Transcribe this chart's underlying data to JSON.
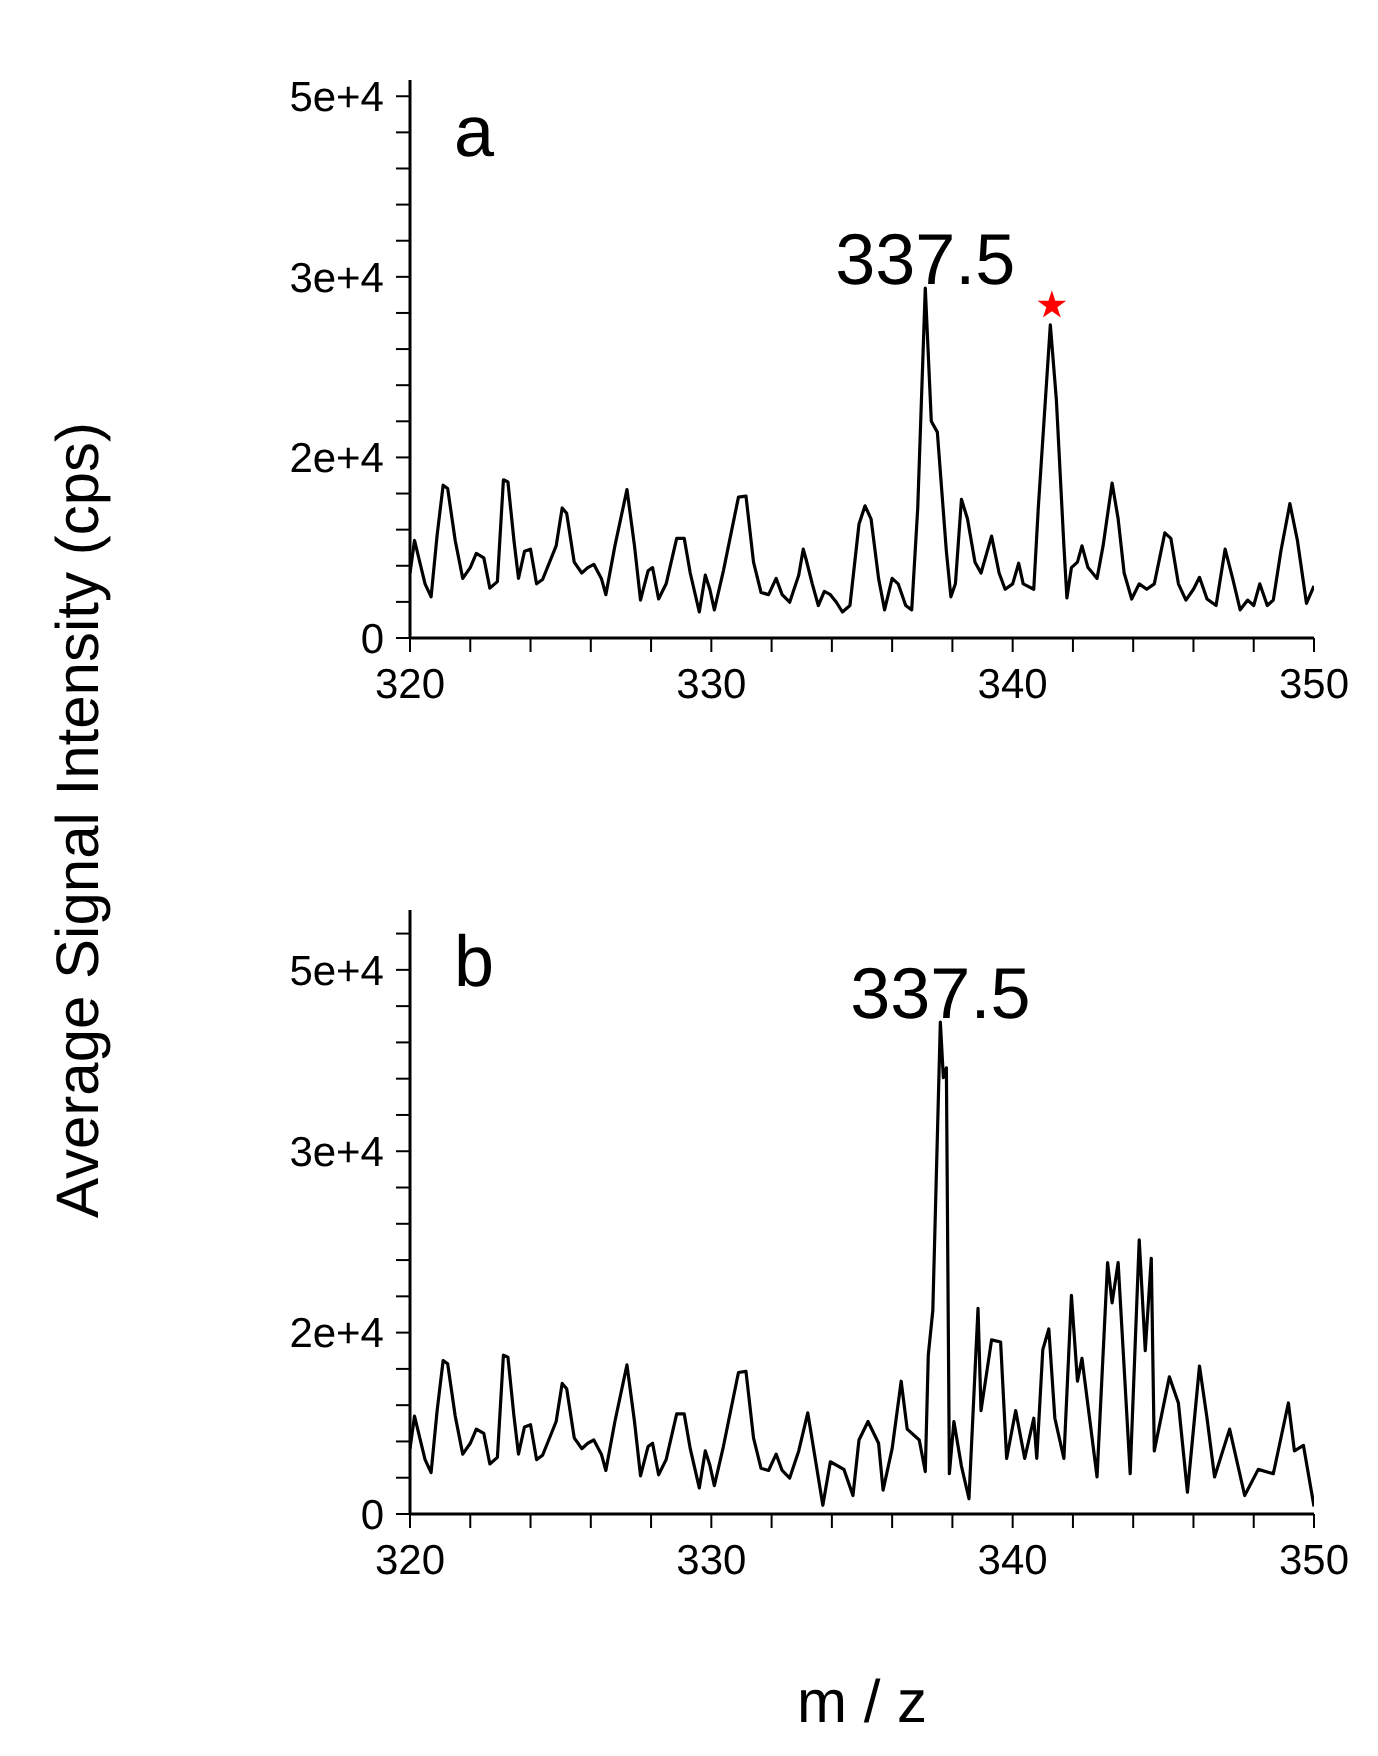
{
  "chart_data": [
    {
      "type": "line",
      "ylabel": "Average Signal Intensity (cps)",
      "annotations": [
        "a",
        {
          "text": "337.5",
          "x": 337.1,
          "y": 32300
        }
      ],
      "xlim": [
        320,
        350
      ],
      "ylim": [
        0,
        51500
      ],
      "xticks": [
        320,
        {
          "value": 322,
          "label": null
        },
        {
          "value": 324,
          "label": null
        },
        {
          "value": 326,
          "label": null
        },
        {
          "value": 328,
          "label": null
        },
        330,
        {
          "value": 332,
          "label": null
        },
        {
          "value": 334,
          "label": null
        },
        {
          "value": 336,
          "label": null
        },
        {
          "value": 338,
          "label": null
        },
        340,
        {
          "value": 342,
          "label": null
        },
        {
          "value": 344,
          "label": null
        },
        {
          "value": 346,
          "label": null
        },
        {
          "value": 348,
          "label": null
        },
        350
      ],
      "yticks": [
        0,
        {
          "value": 3333.3,
          "label": null
        },
        {
          "value": 6666.7,
          "label": null
        },
        {
          "value": 10000,
          "label": null
        },
        {
          "value": 13333.3,
          "label": null
        },
        {
          "value": 16666.7,
          "label": "2e+4"
        },
        {
          "value": 20000,
          "label": null
        },
        {
          "value": 23333.3,
          "label": null
        },
        {
          "value": 26666.7,
          "label": null
        },
        {
          "value": 30000,
          "label": null
        },
        {
          "value": 33333.3,
          "label": "3e+4"
        },
        {
          "value": 36666.7,
          "label": null
        },
        {
          "value": 40000,
          "label": null
        },
        {
          "value": 43333.3,
          "label": null
        },
        {
          "value": 46666.7,
          "label": null
        },
        {
          "value": 50000,
          "label": "5e+4"
        }
      ],
      "series": [
        {
          "color": "#000000",
          "x": [
            320.0,
            320.15,
            320.5,
            320.7,
            320.9,
            321.1,
            321.25,
            321.5,
            321.75,
            322.0,
            322.2,
            322.45,
            322.65,
            322.9,
            323.1,
            323.25,
            323.45,
            323.6,
            323.8,
            324.0,
            324.2,
            324.4,
            324.85,
            325.05,
            325.2,
            325.45,
            325.7,
            325.9,
            326.1,
            326.35,
            326.5,
            326.8,
            327.2,
            327.45,
            327.65,
            327.9,
            328.05,
            328.25,
            328.5,
            328.85,
            329.1,
            329.3,
            329.6,
            329.8,
            329.95,
            330.1,
            330.4,
            330.9,
            331.15,
            331.4,
            331.65,
            331.9,
            332.15,
            332.35,
            332.6,
            332.9,
            333.05,
            333.15,
            333.35,
            333.55,
            333.75,
            333.95,
            334.15,
            334.35,
            334.6,
            334.9,
            335.1,
            335.3,
            335.55,
            335.75,
            336.0,
            336.2,
            336.45,
            336.65,
            336.85,
            337.1,
            337.3,
            337.5,
            337.8,
            337.95,
            338.1,
            338.3,
            338.5,
            338.75,
            338.95,
            339.3,
            339.55,
            339.75,
            340.0,
            340.2,
            340.35,
            340.7,
            340.85,
            341.25,
            341.45,
            341.7,
            341.8,
            341.95,
            342.15,
            342.3,
            342.5,
            342.8,
            343.0,
            343.3,
            343.5,
            343.7,
            343.95,
            344.2,
            344.45,
            344.7,
            345.05,
            345.25,
            345.5,
            345.75,
            346.0,
            346.2,
            346.45,
            346.75,
            347.05,
            347.3,
            347.55,
            347.8,
            348.0,
            348.2,
            348.45,
            348.65,
            348.9,
            349.2,
            349.45,
            349.75,
            350.0
          ],
          "values": [
            6000,
            9000,
            5000,
            3800,
            9500,
            14100,
            13800,
            9000,
            5500,
            6500,
            7800,
            7400,
            4600,
            5200,
            14600,
            14400,
            9000,
            5500,
            8000,
            8200,
            5000,
            5400,
            8500,
            12000,
            11500,
            7000,
            6000,
            6500,
            6800,
            5500,
            4000,
            8500,
            13700,
            8500,
            3500,
            6200,
            6500,
            3600,
            5000,
            9200,
            9200,
            6000,
            2400,
            5800,
            4500,
            2600,
            6200,
            13000,
            13100,
            7000,
            4200,
            4000,
            5500,
            4000,
            3300,
            5800,
            8200,
            7200,
            5000,
            3000,
            4300,
            4000,
            3300,
            2400,
            3000,
            10500,
            12200,
            11000,
            5500,
            2600,
            5500,
            5000,
            3000,
            2600,
            12000,
            32300,
            20000,
            19000,
            8000,
            3800,
            5000,
            12800,
            11000,
            7000,
            6000,
            9400,
            6000,
            4500,
            5000,
            6900,
            5000,
            4500,
            12000,
            28900,
            22000,
            8500,
            3700,
            6500,
            7000,
            8500,
            6500,
            5500,
            8500,
            14300,
            11000,
            6000,
            3600,
            5000,
            4500,
            5000,
            9700,
            9200,
            5000,
            3500,
            4500,
            5600,
            3600,
            3000,
            8200,
            5500,
            2600,
            3500,
            3000,
            5000,
            3000,
            3500,
            8000,
            12400,
            9000,
            3200,
            4800
          ]
        },
        {
          "type": "scatter",
          "color": "#ff0000",
          "marker": "star",
          "x": [
            341.3
          ],
          "values": [
            30700
          ]
        }
      ]
    },
    {
      "type": "line",
      "xlabel": "m / z",
      "annotations": [
        "b",
        {
          "text": "337.5",
          "x": 337.6,
          "y": 45200
        }
      ],
      "xlim": [
        320,
        350
      ],
      "ylim": [
        0,
        55500
      ],
      "xticks": [
        320,
        {
          "value": 322,
          "label": null
        },
        {
          "value": 324,
          "label": null
        },
        {
          "value": 326,
          "label": null
        },
        {
          "value": 328,
          "label": null
        },
        330,
        {
          "value": 332,
          "label": null
        },
        {
          "value": 334,
          "label": null
        },
        {
          "value": 336,
          "label": null
        },
        {
          "value": 338,
          "label": null
        },
        340,
        {
          "value": 342,
          "label": null
        },
        {
          "value": 344,
          "label": null
        },
        {
          "value": 346,
          "label": null
        },
        {
          "value": 348,
          "label": null
        },
        350
      ],
      "yticks": [
        0,
        {
          "value": 3333.3,
          "label": null
        },
        {
          "value": 6666.7,
          "label": null
        },
        {
          "value": 10000,
          "label": null
        },
        {
          "value": 13333.3,
          "label": null
        },
        {
          "value": 16666.7,
          "label": "2e+4"
        },
        {
          "value": 20000,
          "label": null
        },
        {
          "value": 23333.3,
          "label": null
        },
        {
          "value": 26666.7,
          "label": null
        },
        {
          "value": 30000,
          "label": null
        },
        {
          "value": 33333.3,
          "label": "3e+4"
        },
        {
          "value": 36666.7,
          "label": null
        },
        {
          "value": 40000,
          "label": null
        },
        {
          "value": 43333.3,
          "label": null
        },
        {
          "value": 46666.7,
          "label": null
        },
        {
          "value": 50000,
          "label": "5e+4"
        },
        {
          "value": 53333.3,
          "label": null
        }
      ],
      "series": [
        {
          "color": "#000000",
          "x": [
            320.0,
            320.15,
            320.5,
            320.7,
            320.9,
            321.1,
            321.25,
            321.5,
            321.75,
            322.0,
            322.2,
            322.45,
            322.65,
            322.9,
            323.1,
            323.25,
            323.45,
            323.6,
            323.8,
            324.0,
            324.2,
            324.4,
            324.85,
            325.05,
            325.2,
            325.45,
            325.7,
            325.9,
            326.1,
            326.35,
            326.5,
            326.8,
            327.2,
            327.45,
            327.65,
            327.9,
            328.05,
            328.25,
            328.5,
            328.85,
            329.1,
            329.3,
            329.6,
            329.8,
            329.95,
            330.1,
            330.4,
            330.9,
            331.15,
            331.4,
            331.65,
            331.9,
            332.15,
            332.35,
            332.6,
            332.9,
            333.2,
            333.7,
            333.95,
            334.4,
            334.7,
            334.9,
            335.2,
            335.55,
            335.7,
            336.0,
            336.3,
            336.5,
            336.9,
            337.1,
            337.2,
            337.35,
            337.6,
            337.7,
            337.8,
            337.9,
            338.05,
            338.3,
            338.55,
            338.85,
            338.95,
            339.3,
            339.6,
            339.8,
            340.1,
            340.4,
            340.7,
            340.8,
            341.0,
            341.2,
            341.4,
            341.7,
            341.95,
            342.15,
            342.3,
            342.8,
            343.15,
            343.3,
            343.5,
            343.9,
            344.2,
            344.4,
            344.6,
            344.7,
            345.2,
            345.5,
            345.8,
            346.2,
            346.45,
            346.7,
            347.2,
            347.7,
            348.15,
            348.65,
            349.15,
            349.35,
            349.65,
            350.0
          ],
          "values": [
            6000,
            9000,
            5000,
            3800,
            9500,
            14100,
            13800,
            9000,
            5500,
            6500,
            7800,
            7400,
            4600,
            5200,
            14600,
            14400,
            9000,
            5500,
            8000,
            8200,
            5000,
            5400,
            8500,
            12000,
            11500,
            7000,
            6000,
            6500,
            6800,
            5500,
            4000,
            8500,
            13700,
            8500,
            3500,
            6200,
            6500,
            3600,
            5000,
            9200,
            9200,
            6000,
            2400,
            5800,
            4500,
            2600,
            6200,
            13000,
            13100,
            7000,
            4200,
            4000,
            5500,
            4000,
            3300,
            5800,
            9300,
            800,
            4800,
            4100,
            1700,
            6800,
            8500,
            6500,
            2200,
            6000,
            12200,
            7800,
            6800,
            3900,
            14600,
            18700,
            45200,
            40100,
            41000,
            3700,
            8500,
            4400,
            1400,
            18900,
            9500,
            16000,
            15800,
            5100,
            9500,
            5100,
            8800,
            5100,
            15100,
            17000,
            8800,
            5100,
            20100,
            12200,
            14300,
            3400,
            23100,
            19400,
            23100,
            3700,
            25200,
            15000,
            23500,
            5800,
            12600,
            10200,
            2000,
            13600,
            8800,
            3400,
            7800,
            1700,
            4100,
            3700,
            10200,
            5800,
            6300,
            700
          ]
        }
      ]
    }
  ]
}
